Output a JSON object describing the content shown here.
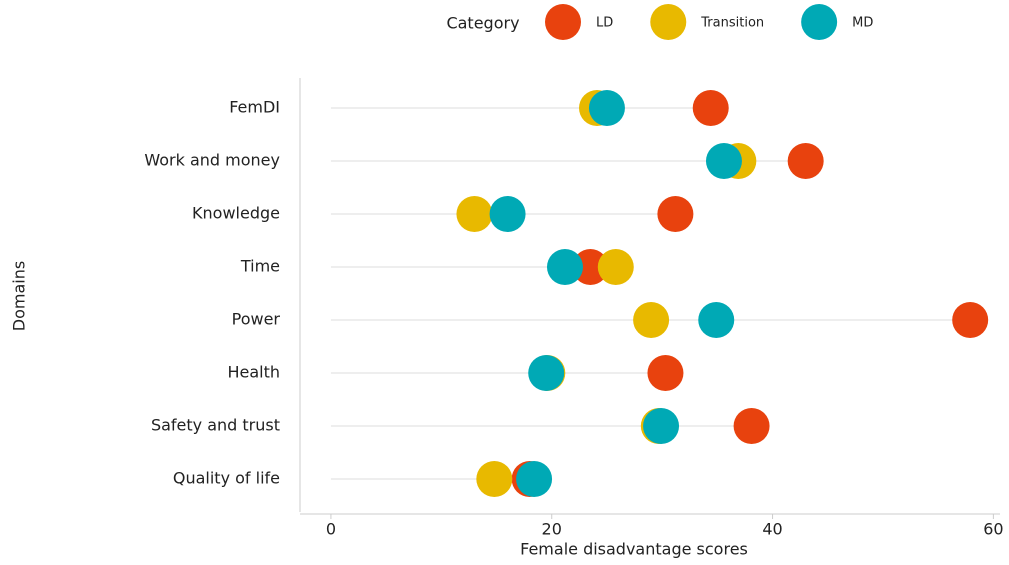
{
  "chart_data": {
    "type": "dot",
    "y_label": "Domains",
    "x_label": "Female disadvantage scores",
    "legend_title": "Category",
    "categories": [
      "FemDI",
      "Work and money",
      "Knowledge",
      "Time",
      "Power",
      "Health",
      "Safety and trust",
      "Quality of life"
    ],
    "series": [
      {
        "name": "LD",
        "color": "#e8420e",
        "values": [
          34.4,
          43.0,
          31.2,
          23.5,
          57.9,
          30.3,
          38.1,
          18.0
        ]
      },
      {
        "name": "Transition",
        "color": "#e8b900",
        "values": [
          24.1,
          36.9,
          13.0,
          25.8,
          29.0,
          19.6,
          29.7,
          14.8
        ]
      },
      {
        "name": "MD",
        "color": "#00a9b5",
        "values": [
          25.0,
          35.6,
          16.0,
          21.2,
          34.9,
          19.5,
          29.9,
          18.4
        ]
      }
    ],
    "xlim": [
      -2.8,
      60.6
    ],
    "xticks": [
      0,
      20,
      40,
      60
    ],
    "legend_position": "top"
  }
}
